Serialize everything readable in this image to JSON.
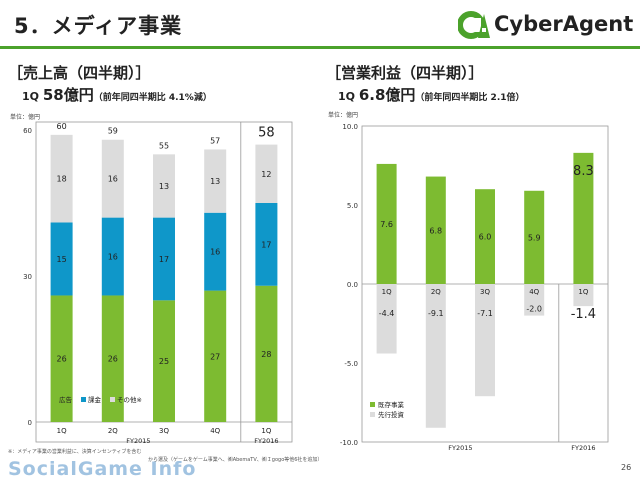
{
  "slide": {
    "title": "5．メディア事業",
    "page_number": "26",
    "footnote_line1": "※：メディア事業の営業利益に、決算インセンティブを含む",
    "footnote_line2": "から選及（ゲームをゲーム事業へ、㈱AbemaTV、㈱Ｉgogo等他6社を追加）",
    "watermark": "SocialGame Info"
  },
  "logo": {
    "text": "CyberAgent",
    "mark": "CA",
    "color": "#4ba22b"
  },
  "left": {
    "heading": "［売上高（四半期）］",
    "sub_prefix": "1Q ",
    "sub_value": "58億円",
    "sub_note": "（前年同四半期比 4.1%減）"
  },
  "right": {
    "heading": "［営業利益（四半期）］",
    "sub_prefix": "1Q ",
    "sub_value": "6.8億円",
    "sub_note": "（前年同四半期比 2.1倍）"
  },
  "chart_data": [
    {
      "type": "bar",
      "stacked": true,
      "unit_label": "単位：億円",
      "categories": [
        "1Q",
        "2Q",
        "3Q",
        "4Q",
        "1Q"
      ],
      "groups": [
        {
          "label": "FY2015",
          "from": 0,
          "to": 3
        },
        {
          "label": "FY2016",
          "from": 4,
          "to": 4
        }
      ],
      "series": [
        {
          "name": "広告",
          "color": "#7dbb31",
          "values": [
            26,
            26,
            25,
            27,
            28
          ]
        },
        {
          "name": "課金",
          "color": "#0f97c9",
          "values": [
            15,
            16,
            17,
            16,
            17
          ]
        },
        {
          "name": "その他※",
          "color": "#dcdcdc",
          "values": [
            18,
            16,
            13,
            13,
            12
          ]
        }
      ],
      "totals": [
        60,
        59,
        55,
        57,
        58
      ],
      "highlight_index": 4,
      "ylim": [
        0,
        60
      ],
      "yticks": [
        0,
        30,
        60
      ],
      "legend": "bottom-left"
    },
    {
      "type": "bar",
      "stacked": false,
      "unit_label": "単位：億円",
      "categories": [
        "1Q",
        "2Q",
        "3Q",
        "4Q",
        "1Q"
      ],
      "groups": [
        {
          "label": "FY2015",
          "from": 0,
          "to": 3
        },
        {
          "label": "FY2016",
          "from": 4,
          "to": 4
        }
      ],
      "series": [
        {
          "name": "既存事業",
          "color": "#7dbb31",
          "values": [
            7.6,
            6.8,
            6.0,
            5.9,
            8.3
          ]
        },
        {
          "name": "先行投資",
          "color": "#dcdcdc",
          "values": [
            -4.4,
            -9.1,
            -7.1,
            -2.0,
            -1.4
          ]
        }
      ],
      "highlight_index": 4,
      "ylim": [
        -10,
        10
      ],
      "yticks": [
        "10.0",
        "5.0",
        "0.0",
        "-5.0",
        "-10.0"
      ],
      "ytick_values": [
        10,
        5,
        0,
        -5,
        -10
      ],
      "legend": "bottom-left"
    }
  ]
}
